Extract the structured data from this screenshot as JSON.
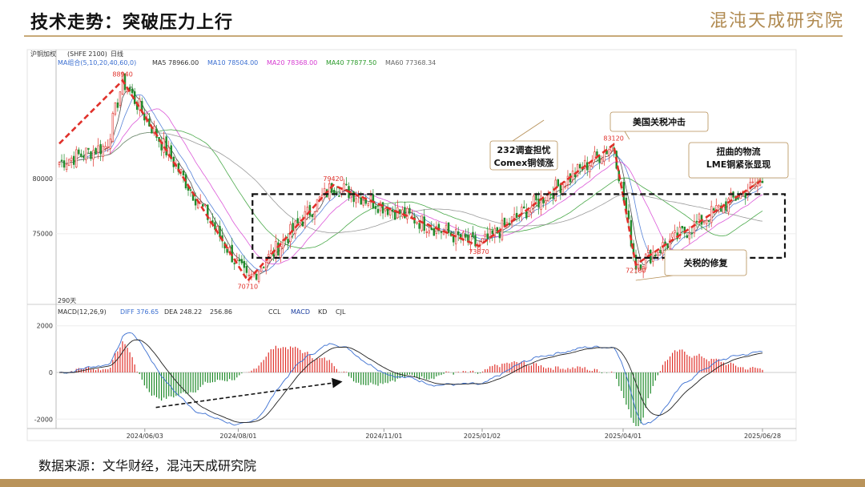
{
  "slide": {
    "title": "技术走势：突破压力上行",
    "logo": "混沌天成研究院",
    "source": "数据来源：文华财经，混沌天成研究院"
  },
  "chart_header": {
    "instrument": "沪铜加权",
    "exchange": "(SHFE 2100)",
    "period": "日线",
    "ma_label": "MA组合(5,10,20,40,60,0)",
    "ma_values": [
      {
        "name": "MA5",
        "value": "78966.00",
        "color": "#333333"
      },
      {
        "name": "MA10",
        "value": "78504.00",
        "color": "#3b6fd1"
      },
      {
        "name": "MA20",
        "value": "78368.00",
        "color": "#d63bd1"
      },
      {
        "name": "MA40",
        "value": "77877.50",
        "color": "#2a9a2a"
      },
      {
        "name": "MA60",
        "value": "77368.34",
        "color": "#666666"
      }
    ],
    "days_label": "290天",
    "macd_label": "MACD(12,26,9)",
    "diff": "DIFF 376.65",
    "dea": "DEA 248.22",
    "macd_val": "256.86",
    "tabs": [
      "CCL",
      "MACD",
      "KD",
      "CJL"
    ]
  },
  "chart_data": {
    "type": "candlestick",
    "x_ticks": [
      "2024/06/03",
      "2024/08/01",
      "2024/11/01",
      "2025/01/02",
      "2025/04/01",
      "2025/06/28"
    ],
    "price_axis": {
      "ticks": [
        75000,
        80000
      ],
      "range": [
        69000,
        90000
      ]
    },
    "macd_axis": {
      "ticks": [
        2000,
        0,
        -2000
      ],
      "range": [
        -2300,
        2300
      ]
    },
    "price_labels": [
      "88940",
      "70710",
      "79420",
      "73870",
      "83120",
      "72180",
      "79820"
    ],
    "key_points": [
      {
        "date": "2024/05/20",
        "value": 88940
      },
      {
        "date": "2024/08/07",
        "value": 70710
      },
      {
        "date": "2024/09/30",
        "value": 79420
      },
      {
        "date": "2024/12/31",
        "value": 73870
      },
      {
        "date": "2025/03/26",
        "value": 83120
      },
      {
        "date": "2025/04/09",
        "value": 72180
      },
      {
        "date": "2025/06/27",
        "value": 79820
      }
    ],
    "range_box": {
      "upper": 78600,
      "lower": 72800
    },
    "annotations": [
      {
        "text": "232调查担忧",
        "text2": "Comex铜领涨"
      },
      {
        "text": "美国关税冲击"
      },
      {
        "text": "扭曲的物流",
        "text2": "LME铜紧张显现"
      },
      {
        "text": "关税的修复"
      }
    ]
  },
  "colors": {
    "up": "#e0302a",
    "down": "#1f8a2a",
    "trend": "#e0302a",
    "box": "#111111",
    "accent": "#b9935a"
  }
}
